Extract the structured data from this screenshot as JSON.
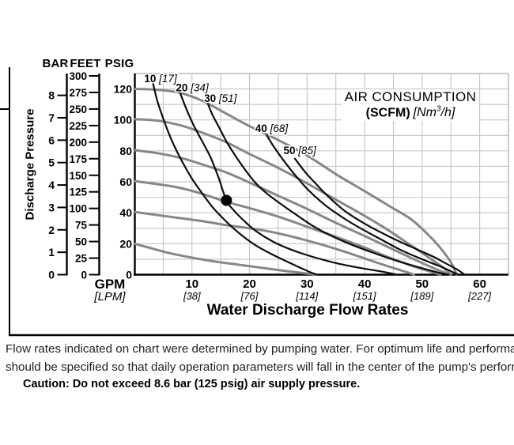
{
  "scales": {
    "bar": {
      "header": "BAR",
      "ticks": [
        0,
        1,
        2,
        3,
        4,
        5,
        6,
        7,
        8
      ]
    },
    "feet": {
      "header": "FEET",
      "ticks": [
        0,
        25,
        50,
        75,
        100,
        125,
        150,
        175,
        200,
        225,
        250,
        275,
        300
      ]
    },
    "psig": {
      "header": "PSIG",
      "ticks": [
        0,
        20,
        40,
        60,
        80,
        100,
        120
      ]
    }
  },
  "y_axis_title": "Discharge Pressure",
  "x_axis": {
    "unit": "GPM",
    "unit_sub": "[LPM]",
    "title": "Water Discharge Flow Rates"
  },
  "legend": {
    "line1": "AIR CONSUMPTION",
    "bold": "(SCFM)",
    "it1": "[Nm",
    "sup": "3",
    "it2": "/h]"
  },
  "caption": {
    "line1": "Flow rates indicated on chart were determined by pumping water. For optimum life and performance, pump",
    "line2": "should be specified so that daily operation parameters will fall in the center of the pump's performance curve"
  },
  "caution": "Caution: Do not exceed 8.6 bar (125 psig) air supply pressure.",
  "colors": {
    "performance_curve": "#878787",
    "air_curve": "#0d0d0d",
    "grid": "#c4c4c4",
    "axis": "#000000",
    "background": "#ffffff"
  },
  "chart_data": {
    "type": "line",
    "title": "AIR CONSUMPTION (SCFM) [Nm3/h]",
    "xlabel": "Water Discharge Flow Rates",
    "ylabel": "Discharge Pressure",
    "x_units": [
      "GPM",
      "LPM"
    ],
    "y_units": [
      "BAR",
      "FEET",
      "PSIG"
    ],
    "xlim_gpm": [
      0,
      65
    ],
    "ylim_psig": [
      0,
      130
    ],
    "x_grid_step_gpm": 5,
    "y_grid_step_psig": 10,
    "grid": true,
    "x_ticks": [
      {
        "gpm": "10",
        "lpm": "[38]"
      },
      {
        "gpm": "20",
        "lpm": "[76]"
      },
      {
        "gpm": "30",
        "lpm": "[114]"
      },
      {
        "gpm": "40",
        "lpm": "[151]"
      },
      {
        "gpm": "50",
        "lpm": "[189]"
      },
      {
        "gpm": "60",
        "lpm": "[227]"
      }
    ],
    "operating_point": {
      "gpm": 16,
      "psig": 48
    },
    "performance_curves": [
      {
        "name": "120 psig curve",
        "y_intercept_psig": 120,
        "points_gpm_psig": [
          [
            0,
            120
          ],
          [
            4,
            119.5
          ],
          [
            8,
            117.5
          ],
          [
            12,
            112
          ],
          [
            16,
            104
          ],
          [
            20,
            96
          ],
          [
            25,
            87
          ],
          [
            30,
            77
          ],
          [
            35,
            65
          ],
          [
            40,
            54
          ],
          [
            44,
            45
          ],
          [
            48,
            36
          ],
          [
            51,
            26
          ],
          [
            53,
            18
          ],
          [
            55,
            8
          ],
          [
            56,
            0
          ]
        ]
      },
      {
        "name": "100 psig curve",
        "y_intercept_psig": 100,
        "points_gpm_psig": [
          [
            0,
            100.5
          ],
          [
            4,
            99.5
          ],
          [
            8,
            96.5
          ],
          [
            12,
            91.5
          ],
          [
            16,
            85.5
          ],
          [
            20,
            78
          ],
          [
            25,
            69
          ],
          [
            30,
            59
          ],
          [
            35,
            48.5
          ],
          [
            40,
            38
          ],
          [
            44,
            29
          ],
          [
            48,
            19
          ],
          [
            51,
            11.5
          ],
          [
            53.5,
            5
          ],
          [
            55,
            0
          ]
        ]
      },
      {
        "name": "80 psig curve",
        "y_intercept_psig": 80,
        "points_gpm_psig": [
          [
            0,
            80.5
          ],
          [
            4,
            78.5
          ],
          [
            8,
            75.5
          ],
          [
            12,
            71
          ],
          [
            16,
            66
          ],
          [
            20,
            59.5
          ],
          [
            25,
            51
          ],
          [
            30,
            42.5
          ],
          [
            35,
            33.5
          ],
          [
            40,
            25
          ],
          [
            44,
            18
          ],
          [
            48,
            11
          ],
          [
            51.5,
            5
          ],
          [
            54.8,
            0
          ]
        ]
      },
      {
        "name": "60 psig curve",
        "y_intercept_psig": 60,
        "points_gpm_psig": [
          [
            0,
            60.5
          ],
          [
            4,
            58.5
          ],
          [
            8,
            56
          ],
          [
            12,
            52
          ],
          [
            16,
            47
          ],
          [
            20,
            43
          ],
          [
            25,
            37.5
          ],
          [
            30,
            31
          ],
          [
            35,
            24.5
          ],
          [
            40,
            17.5
          ],
          [
            44,
            11.5
          ],
          [
            48,
            6
          ],
          [
            51,
            2.5
          ],
          [
            53.2,
            0
          ]
        ]
      },
      {
        "name": "40 psig curve",
        "y_intercept_psig": 40,
        "points_gpm_psig": [
          [
            0,
            40.5
          ],
          [
            4,
            38.5
          ],
          [
            8,
            36.5
          ],
          [
            12,
            34.5
          ],
          [
            16,
            32
          ],
          [
            20,
            30
          ],
          [
            24,
            27.5
          ],
          [
            28,
            24
          ],
          [
            32,
            20
          ],
          [
            36,
            15.5
          ],
          [
            40,
            10.5
          ],
          [
            44,
            5.5
          ],
          [
            47,
            2
          ],
          [
            48.6,
            0
          ]
        ]
      },
      {
        "name": "20 psig curve",
        "y_intercept_psig": 20,
        "points_gpm_psig": [
          [
            0,
            20
          ],
          [
            3,
            17
          ],
          [
            6,
            14
          ],
          [
            10,
            11
          ],
          [
            14,
            8.5
          ],
          [
            18,
            6.5
          ],
          [
            22,
            4.5
          ],
          [
            26,
            2.5
          ],
          [
            29,
            1.2
          ],
          [
            31.6,
            0
          ]
        ]
      }
    ],
    "air_consumption_curves": [
      {
        "scfm": "10",
        "nm3_per_h": "[17]",
        "label_at_gpm_psig": [
          1.7,
          124.5
        ],
        "points_gpm_psig": [
          [
            3.2,
            124
          ],
          [
            4,
            112
          ],
          [
            5,
            101
          ],
          [
            6,
            91
          ],
          [
            7.2,
            81
          ],
          [
            8.6,
            71
          ],
          [
            10,
            62
          ],
          [
            11.5,
            54
          ],
          [
            13.5,
            44
          ],
          [
            15.5,
            36
          ],
          [
            17.5,
            29
          ],
          [
            19.5,
            23
          ],
          [
            21.5,
            18
          ],
          [
            24,
            13
          ],
          [
            26.5,
            8.5
          ],
          [
            28.8,
            4.5
          ],
          [
            30.8,
            1.2
          ],
          [
            31.8,
            0
          ]
        ]
      },
      {
        "scfm": "20",
        "nm3_per_h": "[34]",
        "label_at_gpm_psig": [
          7.2,
          118.5
        ],
        "points_gpm_psig": [
          [
            7.8,
            119
          ],
          [
            8.6,
            111
          ],
          [
            9.5,
            103
          ],
          [
            10.5,
            95
          ],
          [
            11.8,
            86
          ],
          [
            13.2,
            76
          ],
          [
            14.6,
            63
          ],
          [
            16,
            48
          ],
          [
            17.4,
            41
          ],
          [
            19,
            35
          ],
          [
            21,
            28.5
          ],
          [
            24,
            21.5
          ],
          [
            27,
            16.5
          ],
          [
            31,
            11.5
          ],
          [
            35,
            7.5
          ],
          [
            39,
            4.5
          ],
          [
            43,
            2
          ],
          [
            45.6,
            0
          ]
        ]
      },
      {
        "scfm": "30",
        "nm3_per_h": "[51]",
        "label_at_gpm_psig": [
          12.1,
          111.6
        ],
        "points_gpm_psig": [
          [
            12.7,
            111
          ],
          [
            13.6,
            103
          ],
          [
            14.6,
            96
          ],
          [
            16,
            86
          ],
          [
            17.6,
            76.5
          ],
          [
            19.2,
            68
          ],
          [
            21,
            59.5
          ],
          [
            23,
            52.5
          ],
          [
            25.5,
            45.5
          ],
          [
            28,
            39
          ],
          [
            31,
            31.5
          ],
          [
            34,
            25.5
          ],
          [
            38,
            19
          ],
          [
            42,
            13.5
          ],
          [
            46,
            8.5
          ],
          [
            50,
            4.2
          ],
          [
            53,
            1.2
          ],
          [
            54.6,
            0
          ]
        ]
      },
      {
        "scfm": "40",
        "nm3_per_h": "[68]",
        "label_at_gpm_psig": [
          21.0,
          92.3
        ],
        "points_gpm_psig": [
          [
            23,
            90
          ],
          [
            24,
            84
          ],
          [
            25.2,
            77.5
          ],
          [
            26.6,
            70.5
          ],
          [
            28,
            64
          ],
          [
            30,
            55.5
          ],
          [
            32,
            48.5
          ],
          [
            34,
            42.5
          ],
          [
            37,
            35
          ],
          [
            40,
            28.5
          ],
          [
            43,
            22.5
          ],
          [
            46,
            16.5
          ],
          [
            49,
            11.5
          ],
          [
            52,
            7
          ],
          [
            54,
            4
          ],
          [
            55.6,
            1.2
          ],
          [
            56.4,
            0
          ]
        ]
      },
      {
        "scfm": "50",
        "nm3_per_h": "[85]",
        "label_at_gpm_psig": [
          25.9,
          78.0
        ],
        "points_gpm_psig": [
          [
            27.9,
            75
          ],
          [
            29,
            69.5
          ],
          [
            30.2,
            64
          ],
          [
            31.6,
            58.5
          ],
          [
            33,
            53
          ],
          [
            35,
            46
          ],
          [
            37,
            40
          ],
          [
            40,
            33
          ],
          [
            43,
            27
          ],
          [
            46,
            21.5
          ],
          [
            49,
            16.5
          ],
          [
            52,
            11.5
          ],
          [
            54,
            7.5
          ],
          [
            56,
            3.5
          ],
          [
            57.4,
            0
          ]
        ]
      }
    ]
  }
}
